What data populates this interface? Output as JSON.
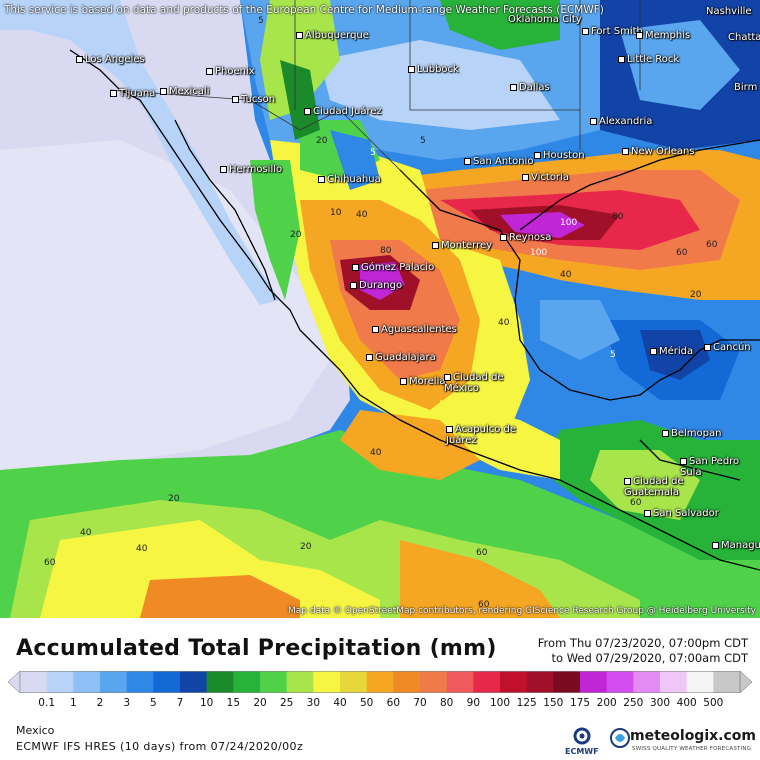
{
  "disclaimer": "This service is based on data and products of the European Centre for Medium-range Weather Forecasts (ECMWF)",
  "attribution": "Map data © OpenStreetMap contributors, rendering GIScience Research Group @ Heidelberg University",
  "title": "Accumulated Total Precipitation (mm)",
  "period": {
    "from": "From Thu 07/23/2020, 07:00pm CDT",
    "to": "to Wed 07/29/2020, 07:00am CDT"
  },
  "legend": {
    "ticks": [
      "0.1",
      "1",
      "2",
      "3",
      "5",
      "7",
      "10",
      "15",
      "20",
      "25",
      "30",
      "40",
      "50",
      "60",
      "70",
      "80",
      "90",
      "100",
      "125",
      "150",
      "175",
      "200",
      "250",
      "300",
      "400",
      "500"
    ],
    "colors": [
      "#d9d9f2",
      "#b7d3f7",
      "#8fc0f5",
      "#5aa6ee",
      "#2f88e6",
      "#1369d6",
      "#1244a8",
      "#1a8a2a",
      "#27b33a",
      "#4fd24a",
      "#a8e54a",
      "#f5f542",
      "#e6d83a",
      "#f5a623",
      "#f08a24",
      "#f07a4a",
      "#f05a5a",
      "#e8284a",
      "#c0102a",
      "#a01028",
      "#7a0a20",
      "#c026d6",
      "#d24ef0",
      "#e38af5",
      "#f0c6f7",
      "#f5f5f5",
      "#c8c8c8"
    ]
  },
  "region": "Mexico",
  "model": "ECMWF IFS HRES (10 days) from 07/24/2020/00z",
  "logos": {
    "ecmwf": "ECMWF",
    "meteologix": "meteologix.com",
    "meteologix_tag": "SWISS QUALITY WEATHER FORECASTING"
  },
  "cities": [
    {
      "name": "Nashville"
    },
    {
      "name": "Chatta"
    },
    {
      "name": "Oklahoma City"
    },
    {
      "name": "Fort Smith"
    },
    {
      "name": "Memphis"
    },
    {
      "name": "Albuquerque"
    },
    {
      "name": "Little Rock"
    },
    {
      "name": "Los Angeles"
    },
    {
      "name": "Phoenix"
    },
    {
      "name": "Lubbock"
    },
    {
      "name": "Birm"
    },
    {
      "name": "Tijuana"
    },
    {
      "name": "Mexicali"
    },
    {
      "name": "Dallas"
    },
    {
      "name": "Tucson"
    },
    {
      "name": "Ciudad Juárez"
    },
    {
      "name": "Alexandria"
    },
    {
      "name": "New Orleans"
    },
    {
      "name": "San Antonio"
    },
    {
      "name": "Houston"
    },
    {
      "name": "Hermosillo"
    },
    {
      "name": "Victoria"
    },
    {
      "name": "Chihuahua"
    },
    {
      "name": "Monterrey"
    },
    {
      "name": "Reynosa"
    },
    {
      "name": "Gómez Palacio"
    },
    {
      "name": "Durango"
    },
    {
      "name": "Aguascalientes"
    },
    {
      "name": "Mérida"
    },
    {
      "name": "Cancún"
    },
    {
      "name": "Guadalajara"
    },
    {
      "name": "Morelia"
    },
    {
      "name": "Ciudad de México"
    },
    {
      "name": "Acapulco de Juárez"
    },
    {
      "name": "Belmopan"
    },
    {
      "name": "San Pedro Sula"
    },
    {
      "name": "Ciudad de Guatemala"
    },
    {
      "name": "San Salvador"
    },
    {
      "name": "Managu"
    }
  ],
  "map_values": [
    "5",
    "10",
    "20",
    "40",
    "60",
    "80",
    "100",
    "40",
    "20",
    "60",
    "5",
    "40",
    "60",
    "20",
    "40",
    "60",
    "20",
    "40",
    "60",
    "80",
    "100",
    "5",
    "5",
    "20",
    "40",
    "60"
  ]
}
